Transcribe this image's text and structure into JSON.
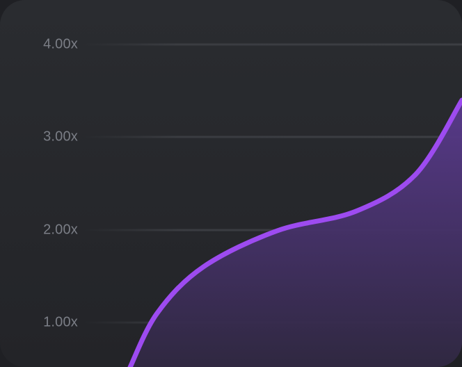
{
  "chart_data": {
    "type": "line",
    "y_ticks": [
      "4.00x",
      "3.00x",
      "2.00x",
      "1.00x"
    ],
    "y_tick_values": [
      4,
      3,
      2,
      1
    ],
    "ylim": [
      0.5,
      4.5
    ],
    "xlim": [
      0,
      1
    ],
    "grid": true,
    "series": [
      {
        "points": [
          [
            0.28,
            0.5
          ],
          [
            0.34,
            1.1
          ],
          [
            0.44,
            1.6
          ],
          [
            0.6,
            1.99
          ],
          [
            0.77,
            2.2
          ],
          [
            0.9,
            2.6
          ],
          [
            1.0,
            3.4
          ]
        ]
      }
    ],
    "colors": {
      "line": "#9d4bf0",
      "fill_top": "#5a3a8e",
      "fill_bottom": "#2f2840",
      "background": "#25272b",
      "tick_label": "#7b7e86",
      "gridline": "#3c3e43"
    }
  }
}
